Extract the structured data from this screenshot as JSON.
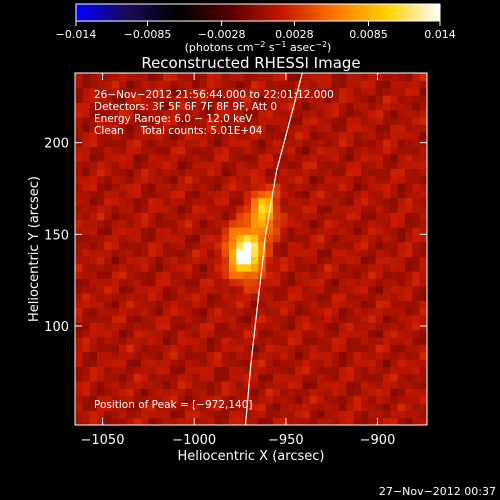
{
  "chart_data": {
    "type": "heatmap",
    "title": "Reconstructed RHESSI Image",
    "xlabel": "Heliocentric X (arcsec)",
    "ylabel": "Heliocentric Y (arcsec)",
    "xlim": [
      -1065,
      -873
    ],
    "ylim": [
      46,
      238
    ],
    "x_ticks": [
      -1050,
      -1000,
      -950,
      -900
    ],
    "x_tick_labels": [
      "−1050",
      "−1000",
      "−950",
      "−900"
    ],
    "y_ticks": [
      100,
      150,
      200
    ],
    "y_tick_labels": [
      "100",
      "150",
      "200"
    ],
    "colorbar": {
      "range": [
        -0.014,
        0.014
      ],
      "ticks": [
        -0.014,
        -0.0085,
        -0.0028,
        0.0028,
        0.0085,
        0.014
      ],
      "tick_labels": [
        "−0.014",
        "−0.0085",
        "−0.0028",
        "0.0028",
        "0.0085",
        "0.014"
      ],
      "units_prefix": "(photons cm",
      "units_exp1": "−2",
      "units_mid": " s",
      "units_exp2": "−1",
      "units_mid2": " asec",
      "units_exp3": "−2",
      "units_suffix": ")"
    },
    "annotations": [
      "26−Nov−2012 21:56:44.000 to 22:01:12.000",
      "Detectors: 3F 5F 6F 7F 8F 9F, Att 0",
      "Energy Range: 6.0 − 12.0 keV",
      "Clean     Total counts: 5.01E+04"
    ],
    "peak_label": "Position of Peak = [−972,140]",
    "peak": {
      "x": -972,
      "y": 140,
      "value": 0.014
    },
    "sources": [
      {
        "x": -972,
        "y": 140,
        "sigma_x": 6.5,
        "sigma_y": 9,
        "amplitude": 0.014
      },
      {
        "x": -962,
        "y": 163,
        "sigma_x": 5,
        "sigma_y": 8,
        "amplitude": 0.009
      }
    ],
    "limb": [
      [
        -972,
        46
      ],
      [
        -969,
        80
      ],
      [
        -965,
        115
      ],
      [
        -961,
        150
      ],
      [
        -955,
        185
      ],
      [
        -947,
        215
      ],
      [
        -941,
        238
      ]
    ],
    "grid": false,
    "colormap": [
      "#0000ff",
      "#1a0a55",
      "#000000",
      "#5a0000",
      "#c81a00",
      "#ff7a00",
      "#ffd200",
      "#ffffff"
    ]
  },
  "footer_date": "27−Nov−2012 00:37"
}
